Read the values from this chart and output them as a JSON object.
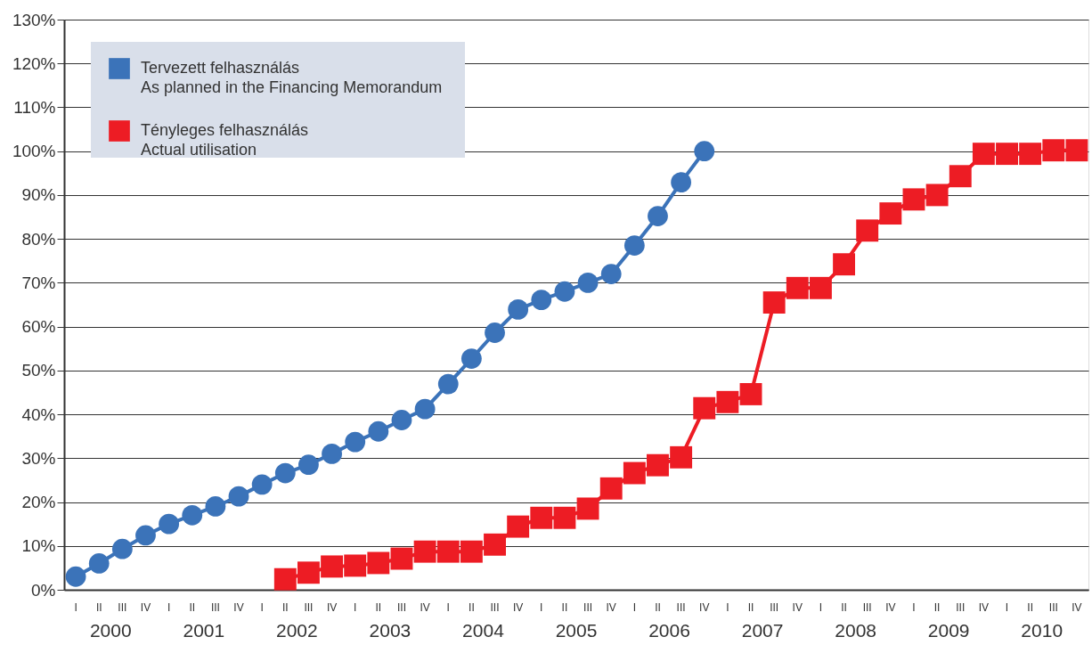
{
  "chart_data": {
    "type": "line",
    "categories": [
      "I",
      "II",
      "III",
      "IV",
      "I",
      "II",
      "III",
      "IV",
      "I",
      "II",
      "III",
      "IV",
      "I",
      "II",
      "III",
      "IV",
      "I",
      "II",
      "III",
      "IV",
      "I",
      "II",
      "III",
      "IV",
      "I",
      "II",
      "III",
      "IV",
      "I",
      "II",
      "III",
      "IV",
      "I",
      "II",
      "III",
      "IV",
      "I",
      "II",
      "III",
      "IV",
      "I",
      "II",
      "III",
      "IV"
    ],
    "annotations": [
      "2000",
      "2001",
      "2002",
      "2003",
      "2004",
      "2005",
      "2006",
      "2007",
      "2008",
      "2009",
      "2010"
    ],
    "series": [
      {
        "name": "Tervezett felhasználás\nAs planned in the Financing Memorandum",
        "color": "#3b73b9",
        "marker": "circle",
        "values": [
          3,
          6,
          9.3,
          12.4,
          15,
          17,
          19,
          21.3,
          24,
          26.6,
          28.5,
          31,
          33.7,
          36.1,
          38.7,
          41.2,
          46.9,
          52.7,
          58.6,
          63.9,
          66.1,
          68,
          70,
          72,
          78.5,
          85.2,
          92.9,
          100,
          null,
          null,
          null,
          null,
          null,
          null,
          null,
          null,
          null,
          null,
          null,
          null,
          null,
          null,
          null,
          null
        ]
      },
      {
        "name": "Tényleges felhasználás\nActual utilisation",
        "color": "#ed1c24",
        "marker": "square",
        "values": [
          null,
          null,
          null,
          null,
          null,
          null,
          null,
          null,
          null,
          2.4,
          3.9,
          5.3,
          5.5,
          6.1,
          7.1,
          8.7,
          8.7,
          8.7,
          10.3,
          14.4,
          16.4,
          16.4,
          18.5,
          23.1,
          26.6,
          28.4,
          30.2,
          41.4,
          42.8,
          44.6,
          65.5,
          68.8,
          68.8,
          74.2,
          81.9,
          85.8,
          89,
          90,
          94.3,
          99.4,
          99.4,
          99.4,
          100.2,
          100.2
        ]
      }
    ],
    "ylim": [
      0,
      130
    ],
    "yticks": [
      {
        "value": 0,
        "label": "0%"
      },
      {
        "value": 10,
        "label": "10%"
      },
      {
        "value": 20,
        "label": "20%"
      },
      {
        "value": 30,
        "label": "30%"
      },
      {
        "value": 40,
        "label": "40%"
      },
      {
        "value": 50,
        "label": "50%"
      },
      {
        "value": 60,
        "label": "60%"
      },
      {
        "value": 70,
        "label": "70%"
      },
      {
        "value": 80,
        "label": "80%"
      },
      {
        "value": 90,
        "label": "90%"
      },
      {
        "value": 100,
        "label": "100%"
      },
      {
        "value": 110,
        "label": "110%"
      },
      {
        "value": 120,
        "label": "120%"
      },
      {
        "value": 130,
        "label": "130%"
      }
    ],
    "grid": "y",
    "legend": "top left",
    "line_style": "solid"
  }
}
